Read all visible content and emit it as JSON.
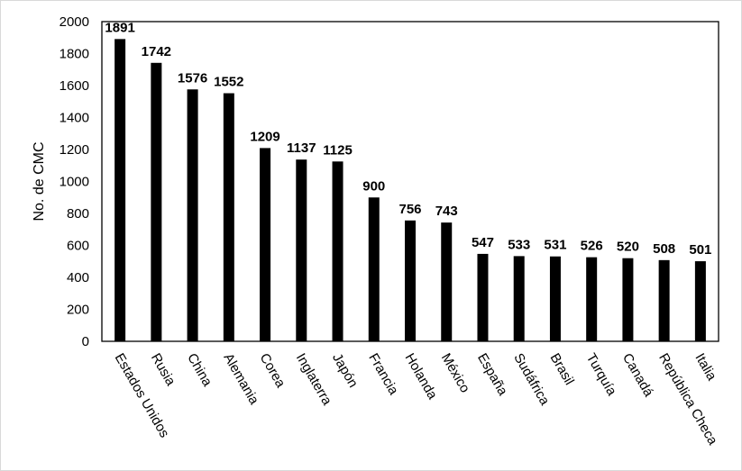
{
  "chart_data": {
    "type": "bar",
    "title": "",
    "xlabel": "",
    "ylabel": "No. de CMC",
    "ylim": [
      0,
      2000
    ],
    "yticks": [
      0,
      200,
      400,
      600,
      800,
      1000,
      1200,
      1400,
      1600,
      1800,
      2000
    ],
    "grid": false,
    "legend": "none",
    "bar_color": "#000000",
    "categories": [
      "Estados Unidos",
      "Rusia",
      "China",
      "Alemania",
      "Corea",
      "Inglaterra",
      "Japón",
      "Francia",
      "Holanda",
      "México",
      "España",
      "Sudáfrica",
      "Brasil",
      "Turquía",
      "Canadá",
      "República Checa",
      "Italia"
    ],
    "values": [
      1891,
      1742,
      1576,
      1552,
      1209,
      1137,
      1125,
      900,
      756,
      743,
      547,
      533,
      531,
      526,
      520,
      508,
      501
    ]
  }
}
